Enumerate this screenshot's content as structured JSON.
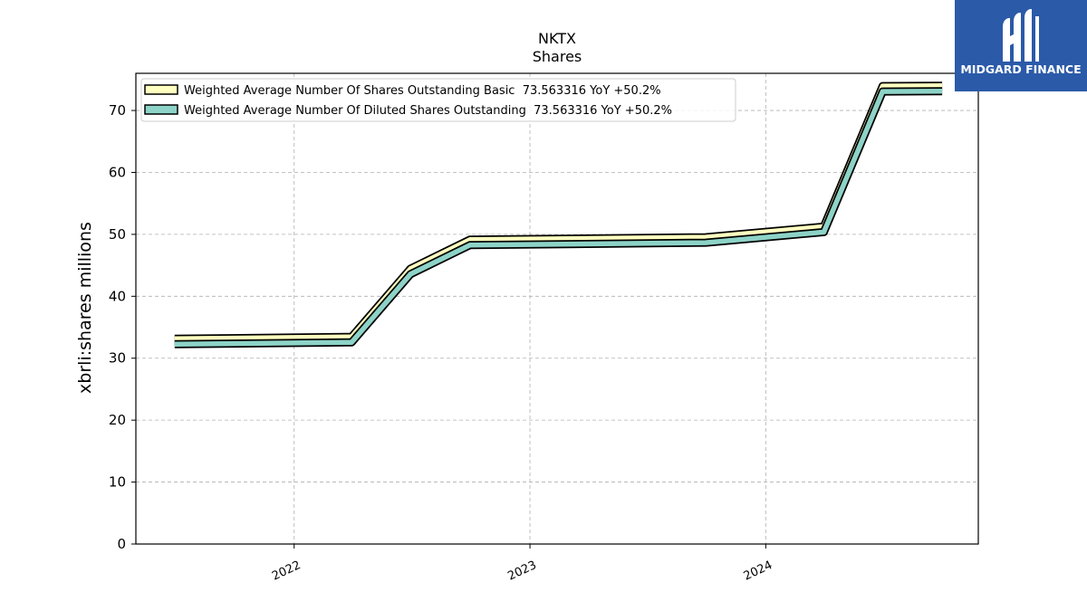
{
  "logo": {
    "text": "MIDGARD FINANCE",
    "color": "#2b5aa8"
  },
  "chart_data": {
    "type": "line",
    "title": "NKTX",
    "subtitle": "Shares",
    "ylabel": "xbrli:shares millions",
    "xlabel": "",
    "ylim": [
      0,
      76
    ],
    "yticks": [
      0,
      10,
      20,
      30,
      40,
      50,
      60,
      70
    ],
    "xlim": [
      "2021-05-01",
      "2024-11-25"
    ],
    "xticks": [
      {
        "date": "2022-01-01",
        "label": "2022"
      },
      {
        "date": "2023-01-01",
        "label": "2023"
      },
      {
        "date": "2024-01-01",
        "label": "2024"
      }
    ],
    "grid": true,
    "legend_position": "top-left",
    "series": [
      {
        "name": "Weighted Average Number Of Shares Outstanding Basic  73.563316 YoY +50.2%",
        "color": "#ffffc0",
        "x": [
          "2021-06-30",
          "2022-03-31",
          "2022-06-30",
          "2022-09-30",
          "2023-09-30",
          "2024-03-31",
          "2024-06-30",
          "2024-09-30"
        ],
        "y": [
          32.7,
          33.0,
          44.0,
          48.7,
          49.1,
          50.8,
          73.5,
          73.563316
        ]
      },
      {
        "name": "Weighted Average Number Of Diluted Shares Outstanding  73.563316 YoY +50.2%",
        "color": "#8dd3c7",
        "x": [
          "2021-06-30",
          "2022-03-31",
          "2022-06-30",
          "2022-09-30",
          "2023-09-30",
          "2024-03-31",
          "2024-06-30",
          "2024-09-30"
        ],
        "y": [
          32.7,
          33.0,
          44.0,
          48.7,
          49.1,
          50.8,
          73.5,
          73.563316
        ]
      }
    ]
  }
}
